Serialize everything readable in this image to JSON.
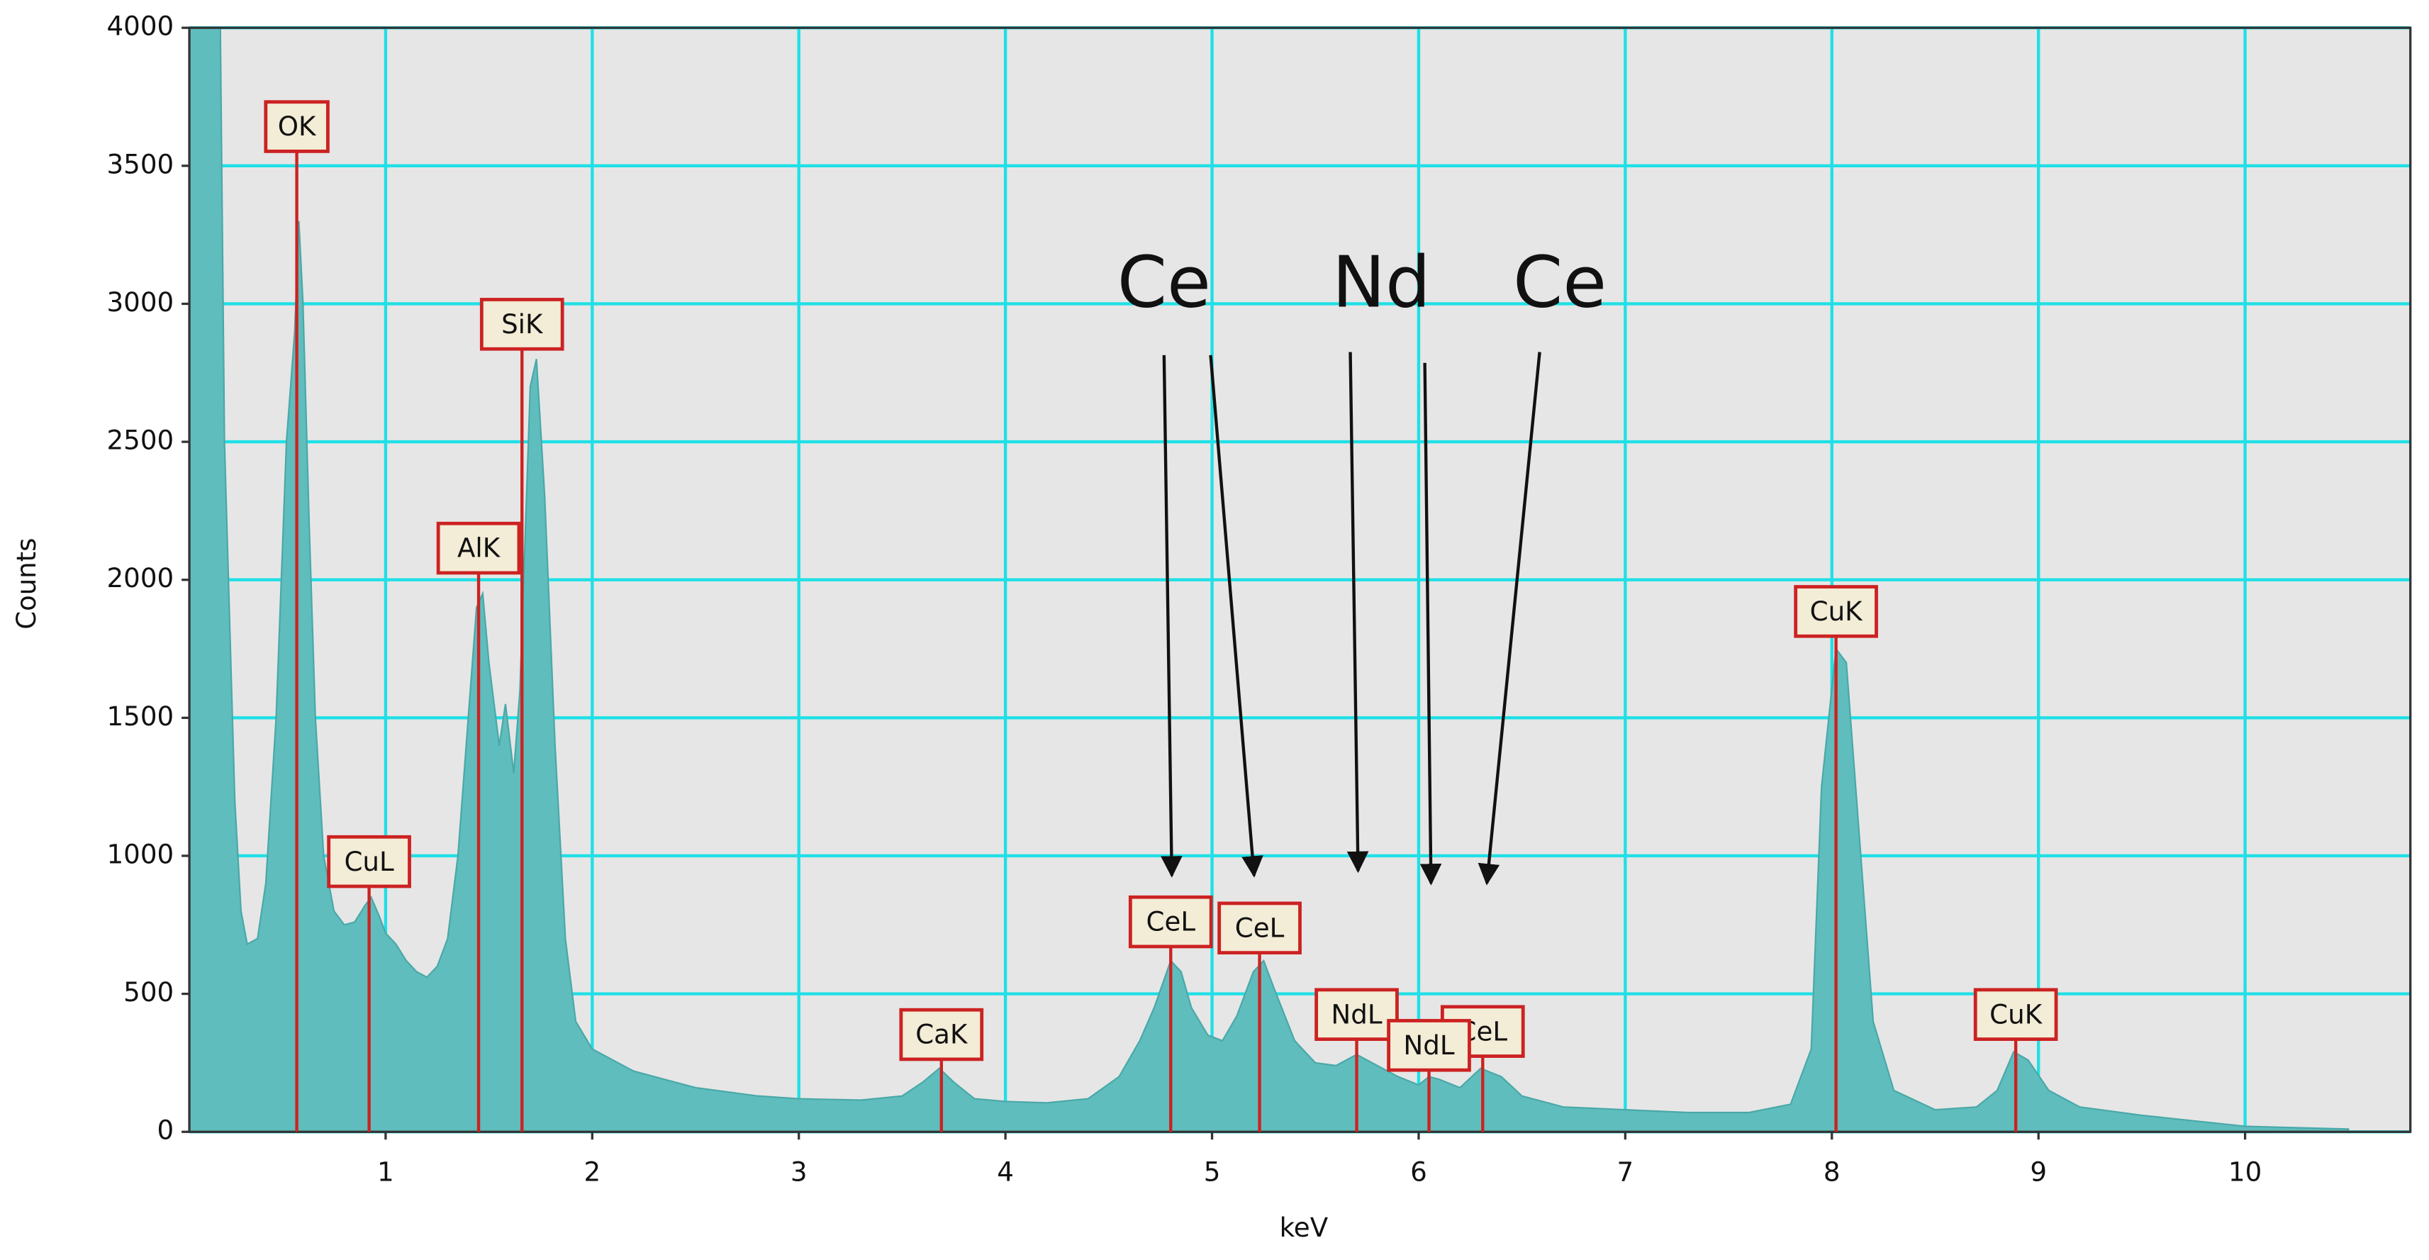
{
  "chart_data": {
    "type": "area",
    "x_label": "keV",
    "y_label": "Counts",
    "xlim": [
      0.05,
      10.8
    ],
    "ylim": [
      0,
      4000
    ],
    "xticks": [
      1,
      2,
      3,
      4,
      5,
      6,
      7,
      8,
      9,
      10
    ],
    "yticks": [
      0,
      500,
      1000,
      1500,
      2000,
      2500,
      3000,
      3500,
      4000
    ],
    "grid": true,
    "color": "#5fbdbd",
    "x": [
      0.05,
      0.1,
      0.2,
      0.22,
      0.27,
      0.3,
      0.33,
      0.38,
      0.42,
      0.47,
      0.52,
      0.56,
      0.58,
      0.6,
      0.63,
      0.66,
      0.7,
      0.75,
      0.8,
      0.85,
      0.9,
      0.93,
      0.97,
      1.0,
      1.05,
      1.1,
      1.15,
      1.2,
      1.25,
      1.3,
      1.35,
      1.4,
      1.44,
      1.47,
      1.5,
      1.55,
      1.58,
      1.62,
      1.65,
      1.7,
      1.73,
      1.77,
      1.82,
      1.87,
      1.92,
      2.0,
      2.2,
      2.5,
      2.8,
      3.0,
      3.3,
      3.5,
      3.6,
      3.68,
      3.75,
      3.85,
      4.0,
      4.2,
      4.4,
      4.55,
      4.65,
      4.72,
      4.8,
      4.85,
      4.9,
      4.98,
      5.05,
      5.12,
      5.2,
      5.25,
      5.3,
      5.4,
      5.5,
      5.6,
      5.7,
      5.8,
      5.9,
      6.0,
      6.05,
      6.1,
      6.2,
      6.3,
      6.4,
      6.5,
      6.7,
      7.0,
      7.3,
      7.6,
      7.8,
      7.9,
      7.95,
      8.02,
      8.07,
      8.12,
      8.2,
      8.3,
      8.5,
      8.7,
      8.8,
      8.88,
      8.95,
      9.05,
      9.2,
      9.5,
      10.0,
      10.5
    ],
    "values": [
      4000,
      4000,
      4000,
      2500,
      1200,
      800,
      680,
      700,
      900,
      1500,
      2500,
      2900,
      3300,
      3000,
      2200,
      1500,
      1000,
      800,
      750,
      760,
      820,
      850,
      780,
      720,
      680,
      620,
      580,
      560,
      600,
      700,
      1000,
      1500,
      1900,
      1950,
      1700,
      1400,
      1550,
      1300,
      1600,
      2700,
      2800,
      2300,
      1400,
      700,
      400,
      300,
      220,
      160,
      130,
      120,
      115,
      130,
      180,
      230,
      180,
      120,
      110,
      105,
      120,
      200,
      330,
      450,
      620,
      580,
      450,
      350,
      330,
      420,
      580,
      620,
      520,
      330,
      250,
      240,
      280,
      240,
      200,
      170,
      200,
      190,
      160,
      230,
      200,
      130,
      90,
      80,
      70,
      70,
      100,
      300,
      1250,
      1750,
      1700,
      1200,
      400,
      150,
      80,
      90,
      150,
      290,
      260,
      150,
      90,
      60,
      20,
      10
    ],
    "peaks": [
      {
        "label": "OK",
        "x": 0.57
      },
      {
        "label": "CuL",
        "x": 0.92
      },
      {
        "label": "AlK",
        "x": 1.45
      },
      {
        "label": "SiK",
        "x": 1.66
      },
      {
        "label": "CaK",
        "x": 3.69
      },
      {
        "label": "CeL",
        "x": 4.8
      },
      {
        "label": "CeL",
        "x": 5.23
      },
      {
        "label": "CeL",
        "x": 6.31
      },
      {
        "label": "NdL",
        "x": 5.7
      },
      {
        "label": "NdL",
        "x": 6.05
      },
      {
        "label": "CuK",
        "x": 8.02
      },
      {
        "label": "CuK",
        "x": 8.89
      }
    ],
    "annotations": [
      {
        "text": "Ce"
      },
      {
        "text": "Nd"
      },
      {
        "text": "Ce"
      }
    ]
  }
}
